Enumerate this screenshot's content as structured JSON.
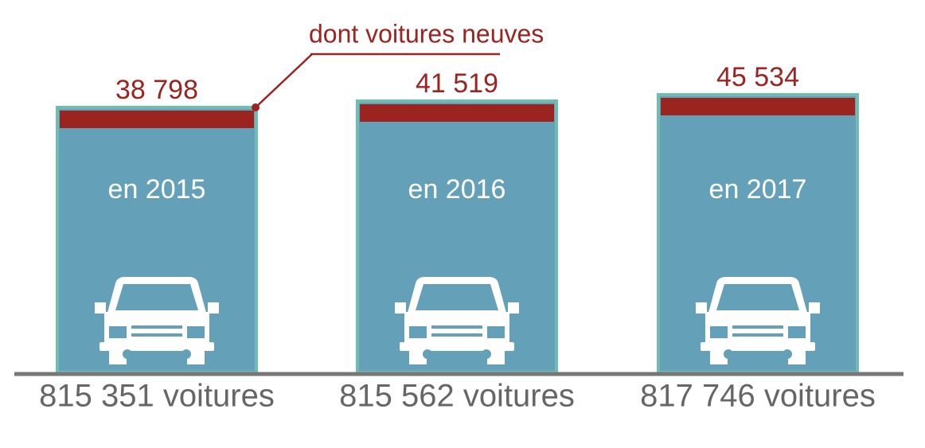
{
  "annotation": "dont voitures neuves",
  "items": [
    {
      "label": "en 2015",
      "new": "38 798",
      "total": "815 351 voitures"
    },
    {
      "label": "en 2016",
      "new": "41 519",
      "total": "815 562 voitures"
    },
    {
      "label": "en 2017",
      "new": "45 534",
      "total": "817 746 voitures"
    }
  ]
}
